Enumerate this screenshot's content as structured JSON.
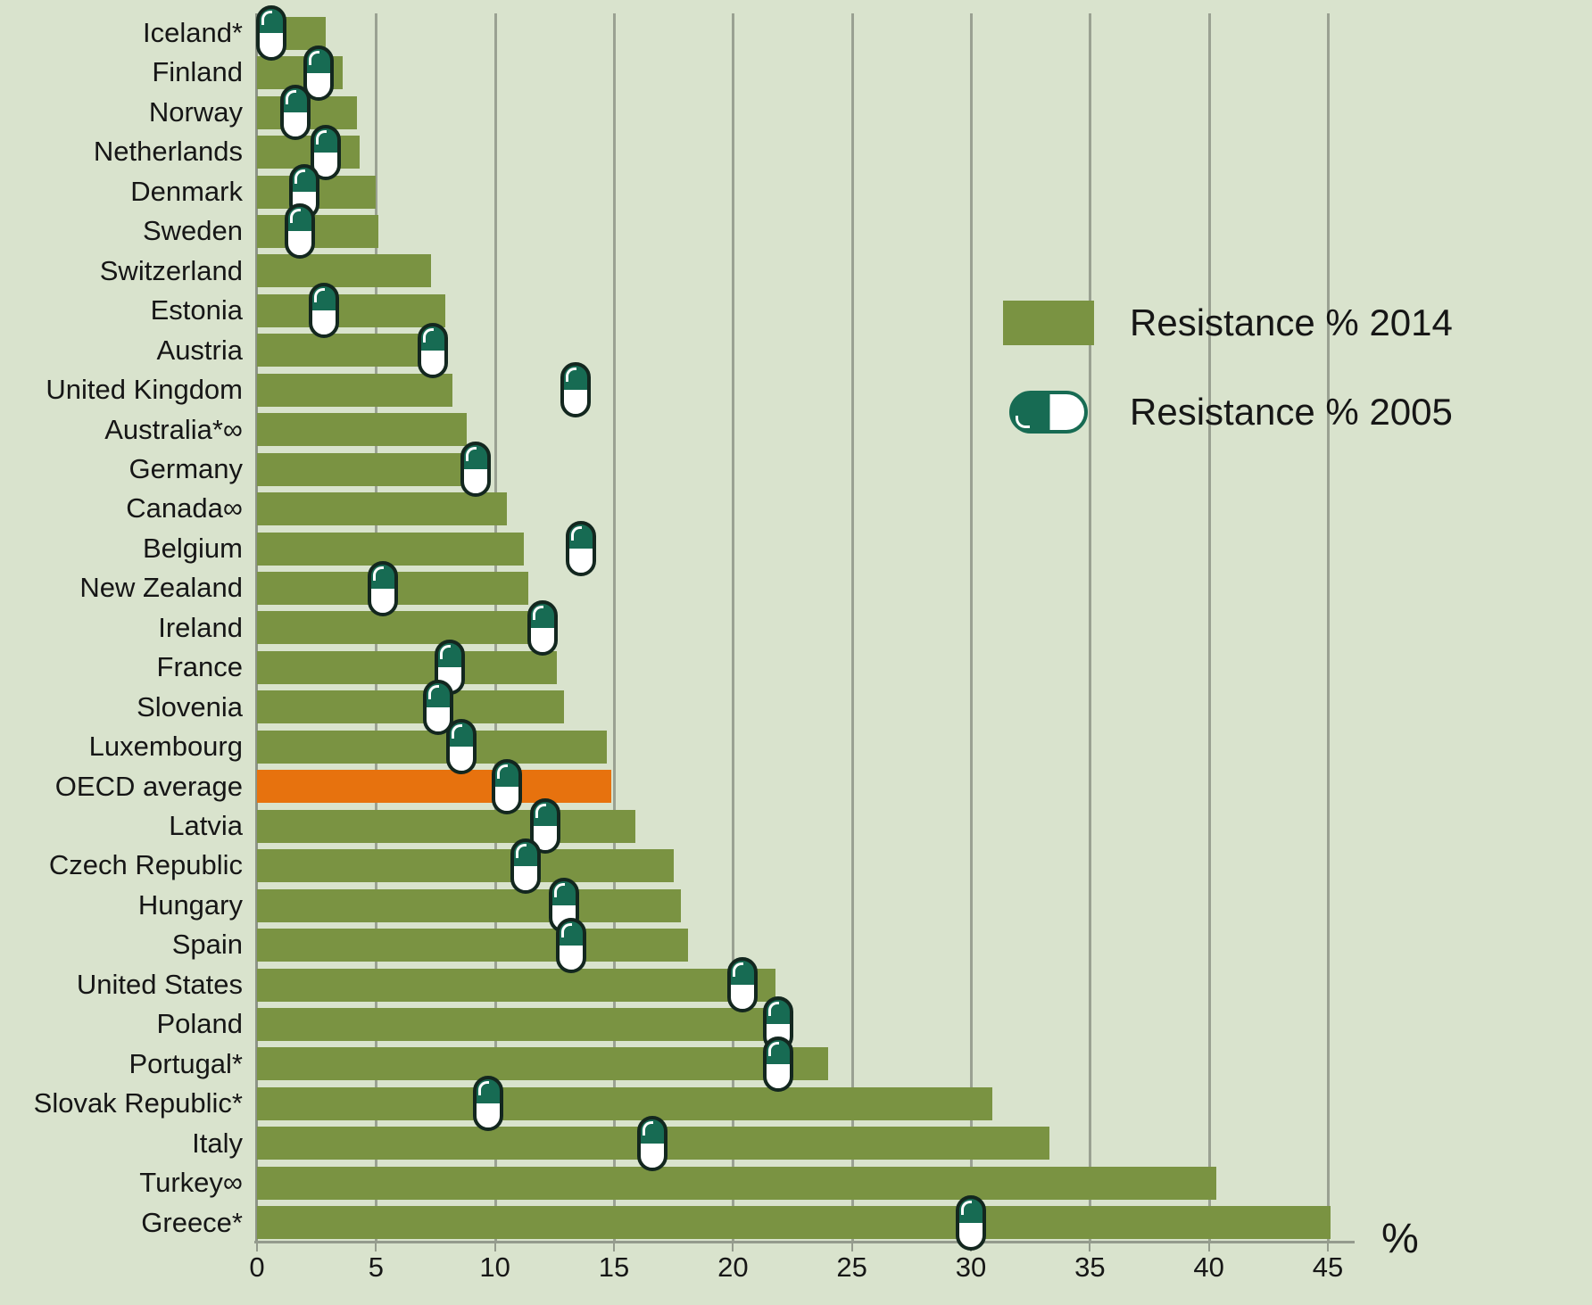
{
  "chart_data": {
    "type": "bar",
    "orientation": "horizontal",
    "title": "",
    "xlabel": "%",
    "xlim": [
      0,
      45
    ],
    "x_ticks": [
      0,
      5,
      10,
      15,
      20,
      25,
      30,
      35,
      40,
      45
    ],
    "grid": true,
    "legend_position": "upper-right",
    "highlight_category": "OECD average",
    "categories": [
      "Iceland*",
      "Finland",
      "Norway",
      "Netherlands",
      "Denmark",
      "Sweden",
      "Switzerland",
      "Estonia",
      "Austria",
      "United Kingdom",
      "Australia*∞",
      "Germany",
      "Canada∞",
      "Belgium",
      "New Zealand",
      "Ireland",
      "France",
      "Slovenia",
      "Luxembourg",
      "OECD average",
      "Latvia",
      "Czech Republic",
      "Hungary",
      "Spain",
      "United States",
      "Poland",
      "Portugal*",
      "Slovak Republic*",
      "Italy",
      "Turkey∞",
      "Greece*"
    ],
    "series": [
      {
        "name": "Resistance % 2014",
        "marker": "bar",
        "values": [
          2.9,
          3.6,
          4.2,
          4.3,
          5.0,
          5.1,
          7.3,
          7.9,
          8.0,
          8.2,
          8.8,
          8.9,
          10.5,
          11.2,
          11.4,
          12.0,
          12.6,
          12.9,
          14.7,
          14.9,
          15.9,
          17.5,
          17.8,
          18.1,
          21.8,
          22.2,
          24.0,
          30.9,
          33.3,
          40.3,
          45.1
        ]
      },
      {
        "name": "Resistance % 2005",
        "marker": "pill",
        "values": [
          0.6,
          2.6,
          1.6,
          2.9,
          2.0,
          1.8,
          null,
          2.8,
          7.4,
          13.4,
          null,
          9.2,
          null,
          13.6,
          5.3,
          12.0,
          8.1,
          7.6,
          8.6,
          10.5,
          12.1,
          11.3,
          12.9,
          13.2,
          20.4,
          21.9,
          21.9,
          9.7,
          16.6,
          null,
          30.0
        ]
      }
    ]
  },
  "colors": {
    "background": "#d9e3cd",
    "bar_2014": "#7a9342",
    "oecd_highlight": "#e7720e",
    "pill_fill": "#176b53",
    "pill_outline": "#13271f",
    "gridline": "#9aa192",
    "axis_line": "#949b8d",
    "text": "#161616"
  }
}
